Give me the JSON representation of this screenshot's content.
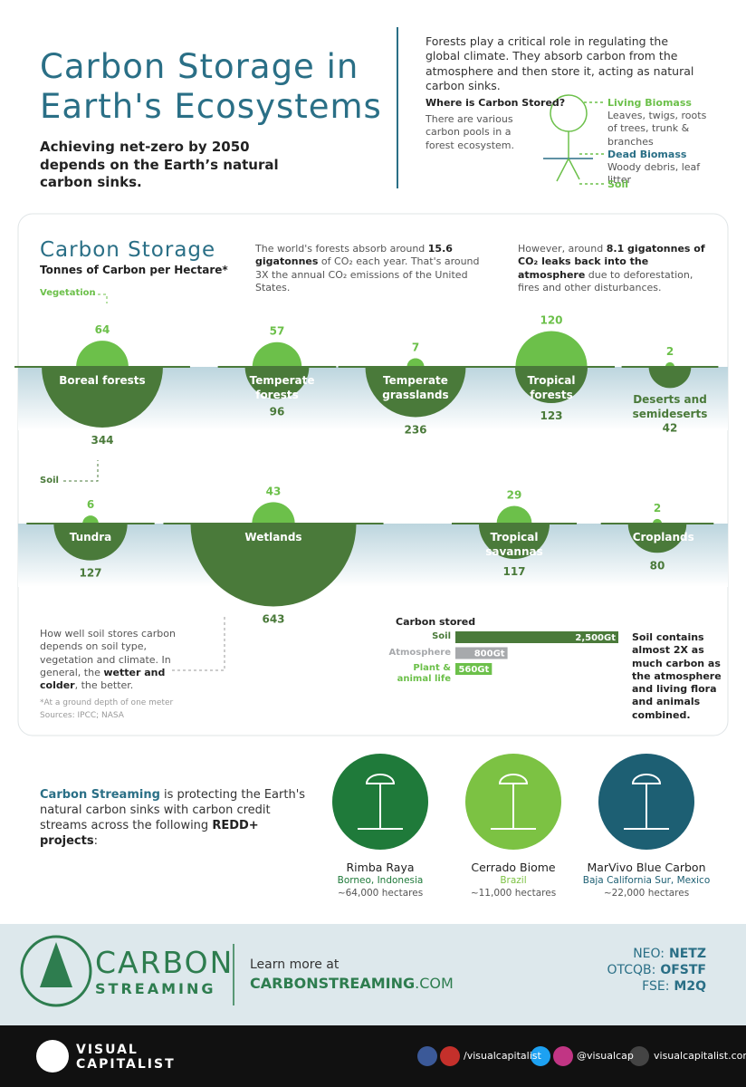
{
  "header": {
    "title": "Carbon Storage in Earth's Ecosystems",
    "subtitle": "Achieving net-zero by 2050 depends on the Earth’s natural carbon sinks.",
    "intro": "Forests play a critical role in regulating the global climate. They absorb carbon from the atmosphere and then store it, acting as natural carbon sinks."
  },
  "carbon_pools": {
    "title": "Where is Carbon Stored?",
    "note": "There are various carbon pools in a forest ecosystem.",
    "items": [
      {
        "label": "Living Biomass",
        "desc": "Leaves, twigs, roots of trees, trunk & branches"
      },
      {
        "label": "Dead Biomass",
        "desc": "Woody debris, leaf litter"
      },
      {
        "label": "Soil"
      }
    ]
  },
  "storage": {
    "title": "Carbon Storage",
    "subtitle": "Tonnes of Carbon per Hectare*",
    "absorb_text": [
      "The world's forests absorb around ",
      "15.6 gigatonnes",
      " of CO₂ each year. That's around 3X the annual CO₂ emissions of the United States."
    ],
    "leak_text": [
      "However, around ",
      "8.1 gigatonnes of CO₂ leaks back into the atmosphere",
      " due to deforestation, fires and other disturbances."
    ],
    "vegetation_label": "Vegetation",
    "soil_label": "Soil",
    "ecosystems": [
      {
        "name": "Boreal forests",
        "vegetation": 64,
        "soil": 344
      },
      {
        "name": "Temperate forests",
        "vegetation": 57,
        "soil": 96
      },
      {
        "name": "Temperate grasslands",
        "vegetation": 7,
        "soil": 236
      },
      {
        "name": "Tropical forests",
        "vegetation": 120,
        "soil": 123
      },
      {
        "name": "Deserts and semideserts",
        "vegetation": 2,
        "soil": 42
      },
      {
        "name": "Tundra",
        "vegetation": 6,
        "soil": 127
      },
      {
        "name": "Wetlands",
        "vegetation": 43,
        "soil": 643
      },
      {
        "name": "Tropical savannas",
        "vegetation": 29,
        "soil": 117
      },
      {
        "name": "Croplands",
        "vegetation": 2,
        "soil": 80
      }
    ],
    "soil_note": [
      "How well soil stores carbon depends on soil type, vegetation and climate. In general, the ",
      "wetter and colder",
      ", the better."
    ],
    "carbon_stored": {
      "title": "Carbon stored",
      "items": [
        {
          "name": "Soil",
          "value": 2500,
          "value_label": "2,500Gt",
          "color": "#4a7a3a"
        },
        {
          "name": "Atmosphere",
          "value": 800,
          "value_label": "800Gt",
          "color": "#a7a9ac"
        },
        {
          "name": "Plant & animal life",
          "value": 560,
          "value_label": "560Gt",
          "color": "#6cc04a"
        }
      ]
    },
    "comparison": "Soil contains almost 2X as much carbon as the atmosphere and living flora and animals combined.",
    "footnote": "*At a ground depth of one meter",
    "sources": "Sources: IPCC; NASA"
  },
  "projects": {
    "intro": [
      "Carbon Streaming",
      " is protecting the Earth's natural carbon sinks with carbon credit streams across the following ",
      "REDD+ projects",
      ":"
    ],
    "items": [
      {
        "name": "Rimba Raya",
        "location": "Borneo, Indonesia",
        "area": "~64,000 hectares",
        "color": "#1f7a3a"
      },
      {
        "name": "Cerrado Biome",
        "location": "Brazil",
        "area": "~11,000 hectares",
        "color": "#7cc243"
      },
      {
        "name": "MarVivo Blue Carbon",
        "location": "Baja California Sur, Mexico",
        "area": "~22,000 hectares",
        "color": "#1d5f73"
      }
    ]
  },
  "sponsor": {
    "logo_top": "CARBON",
    "logo_bottom": "STREAMING",
    "cta": "Learn more at",
    "url_bold": "CARBONSTREAMING",
    "url_rest": ".COM",
    "tickers": [
      {
        "exchange": "NEO:",
        "symbol": "NETZ"
      },
      {
        "exchange": "OTCQB:",
        "symbol": "OFSTF"
      },
      {
        "exchange": "FSE:",
        "symbol": "M2Q"
      }
    ]
  },
  "footer": {
    "brand_top": "VISUAL",
    "brand_bottom": "CAPITALIST",
    "handle1": "/visualcapitalist",
    "handle2": "@visualcap",
    "site": "visualcapitalist.com"
  }
}
